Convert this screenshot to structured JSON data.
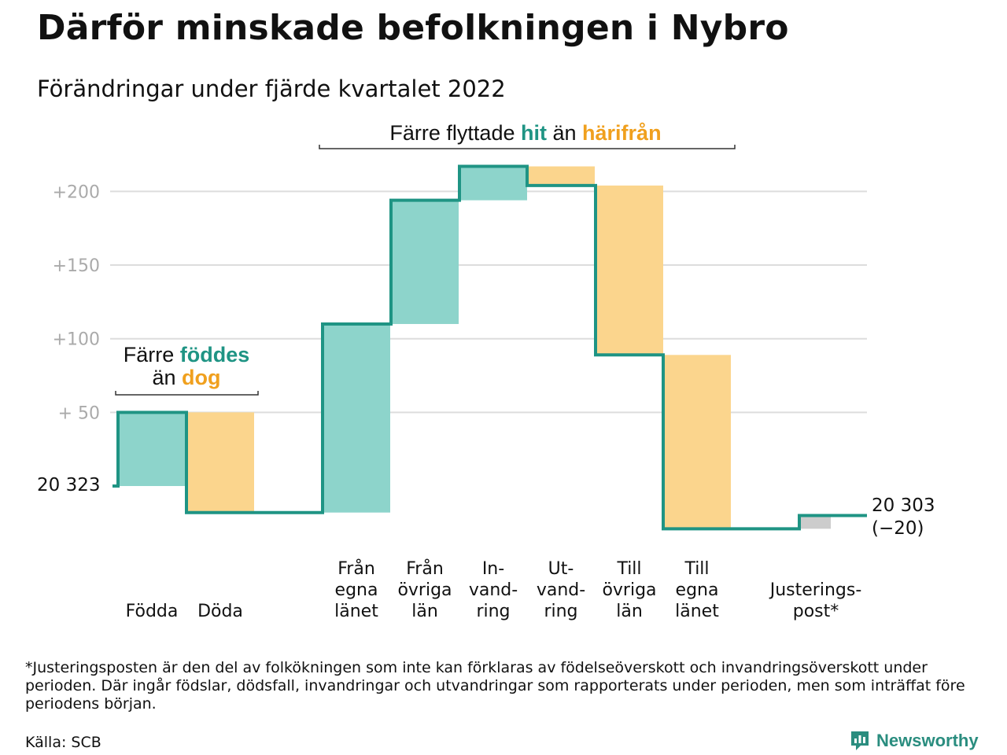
{
  "title": "Därför minskade befolkningen i Nybro",
  "subtitle": "Förändringar under fjärde kvartalet 2022",
  "colors": {
    "positive": "#8dd4cb",
    "negative": "#fbd58d",
    "adjust": "#cccccc",
    "line": "#1f9484",
    "accent_green": "#1f9484",
    "accent_orange": "#f0a01e",
    "grid": "#dddddd"
  },
  "annotations": {
    "births": {
      "prefix": "Färre ",
      "hl1": "föddes",
      "line2_prefix": "än ",
      "hl2": "dog"
    },
    "moves": {
      "prefix": "Färre flyttade ",
      "hl1": "hit",
      "mid": " än ",
      "hl2": "härifrån"
    }
  },
  "chart_data": {
    "type": "waterfall",
    "start": {
      "label": "20 323",
      "value": 20323
    },
    "end": {
      "label": "20 303",
      "change_label": "(−20)",
      "value": 20303
    },
    "y_ticks": [
      {
        "value": 50,
        "label": "+ 50"
      },
      {
        "value": 100,
        "label": "+100"
      },
      {
        "value": 150,
        "label": "+150"
      },
      {
        "value": 200,
        "label": "+200"
      }
    ],
    "ylim": [
      -30,
      220
    ],
    "grid": true,
    "steps": [
      {
        "label": [
          "Födda"
        ],
        "delta": 50,
        "kind": "positive"
      },
      {
        "label": [
          "Döda"
        ],
        "delta": -68,
        "kind": "negative"
      },
      {
        "label": [
          "Från",
          "egna",
          "länet"
        ],
        "delta": 128,
        "kind": "positive"
      },
      {
        "label": [
          "Från",
          "övriga",
          "län"
        ],
        "delta": 84,
        "kind": "positive"
      },
      {
        "label": [
          "In-",
          "vand-",
          "ring"
        ],
        "delta": 23,
        "kind": "positive"
      },
      {
        "label": [
          "Ut-",
          "vand-",
          "ring"
        ],
        "delta": -13,
        "kind": "negative"
      },
      {
        "label": [
          "Till",
          "övriga",
          "län"
        ],
        "delta": -115,
        "kind": "negative"
      },
      {
        "label": [
          "Till",
          "egna",
          "länet"
        ],
        "delta": -118,
        "kind": "negative"
      },
      {
        "label": [
          "Justerings-",
          "post*"
        ],
        "delta": 9,
        "kind": "adjust"
      }
    ]
  },
  "footnote": "*Justeringsposten är den del av folkökningen som inte kan förklaras av födelseöverskott och invandringsöverskott under perioden. Där ingår födslar, dödsfall, invandringar och utvandringar som rapporterats under perioden, men som inträffat före periodens början.",
  "source": "Källa: SCB",
  "brand": "Newsworthy",
  "brand_icon": "bar-chart-logo-icon"
}
